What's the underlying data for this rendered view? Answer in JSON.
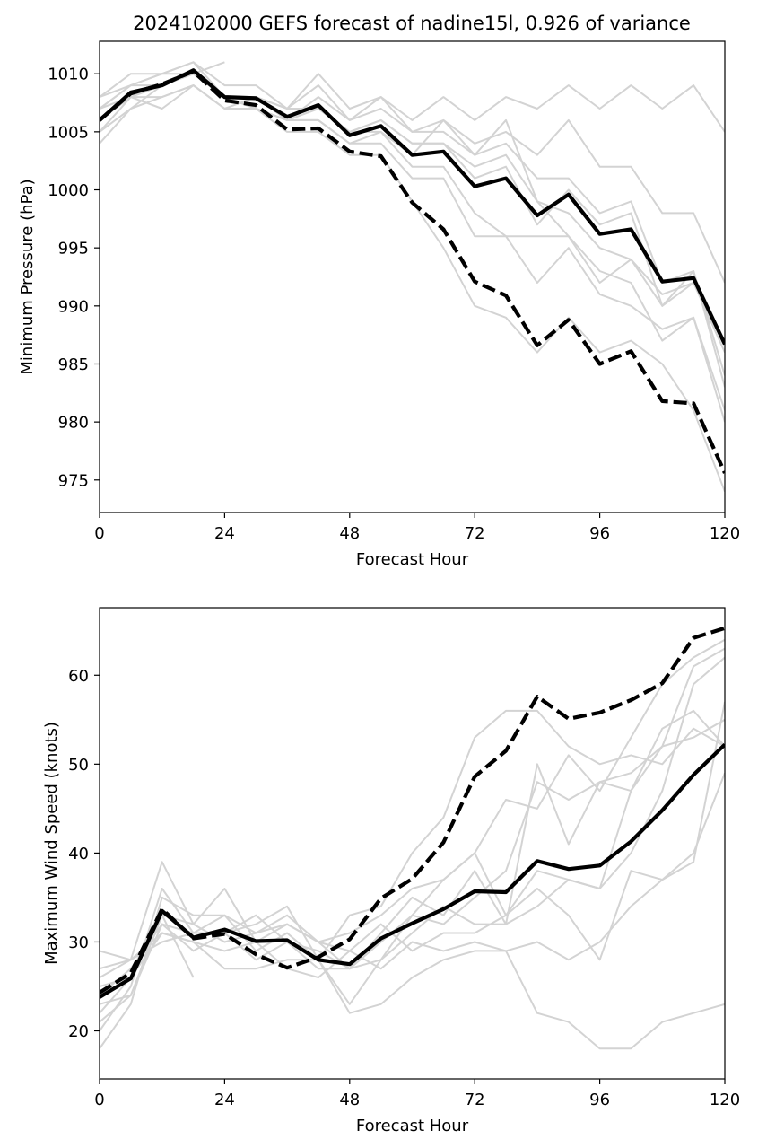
{
  "title": "2024102000 GEFS forecast of nadine15l, 0.926 of variance",
  "colors": {
    "members": "#d3d3d3",
    "primary": "#000000",
    "frame": "#000000"
  },
  "chart_data": [
    {
      "type": "line",
      "xlabel": "Forecast Hour",
      "ylabel": "Minimum Pressure (hPa)",
      "xlim": [
        0,
        120
      ],
      "ylim": [
        972.2,
        1012.8
      ],
      "xticks": [
        0,
        24,
        48,
        72,
        96,
        120
      ],
      "yticks": [
        975,
        980,
        985,
        990,
        995,
        1000,
        1005,
        1010
      ],
      "grid": false,
      "legend": "none",
      "x": [
        0,
        6,
        12,
        18,
        24,
        30,
        36,
        42,
        48,
        54,
        60,
        66,
        72,
        78,
        84,
        90,
        96,
        102,
        108,
        114,
        120
      ],
      "members": [
        [
          1008,
          1010,
          1010,
          1011,
          1008,
          1008,
          1007,
          1010,
          1007,
          1008,
          1006,
          1008,
          1006,
          1008,
          1007,
          1009,
          1007,
          1009,
          1007,
          1009,
          1005
        ],
        [
          1007,
          1009,
          1010,
          1011,
          1009,
          1009,
          1007,
          1009,
          1006,
          1008,
          1005,
          1006,
          1004,
          1005,
          1003,
          1006,
          1002,
          1002,
          998,
          998,
          992
        ],
        [
          1006,
          1008,
          1009,
          1010,
          1008,
          1008,
          1006,
          1008,
          1006,
          1007,
          1005,
          1005,
          1003,
          1004,
          1001,
          1001,
          998,
          999,
          992,
          993,
          983
        ],
        [
          1005,
          1008,
          1009,
          1010,
          1008,
          1007,
          1006,
          1007,
          1005,
          1006,
          1004,
          1004,
          1002,
          1003,
          999,
          998,
          995,
          994,
          990,
          993,
          984
        ],
        [
          1004,
          1007,
          1009,
          1010,
          1008,
          1007,
          1006,
          1007,
          1005,
          1005,
          1003,
          1006,
          1003,
          1006,
          999,
          996,
          993,
          992,
          987,
          989,
          981
        ],
        [
          1007,
          1008,
          1008,
          1009,
          1007,
          1008,
          1006,
          1006,
          1004,
          1005,
          1002,
          1002,
          998,
          996,
          992,
          995,
          991,
          990,
          988,
          989,
          980
        ],
        [
          1005,
          1007,
          1008,
          1009,
          1007,
          1007,
          1006,
          1006,
          1004,
          1004,
          1001,
          1001,
          996,
          996,
          996,
          996,
          992,
          994,
          991,
          992,
          986
        ],
        [
          1006,
          1008,
          1007,
          1009,
          1007,
          1007,
          1005,
          1005,
          1003,
          1003,
          999,
          995,
          990,
          989,
          986,
          989,
          986,
          987,
          985,
          981,
          974
        ],
        [
          1007,
          1009,
          1010,
          1010,
          1011,
          null,
          null,
          null,
          null,
          null,
          null,
          null,
          null,
          null,
          null,
          null,
          null,
          null,
          null,
          null,
          null
        ],
        [
          1008,
          1009,
          1009,
          1010,
          1008,
          1008,
          1007,
          1007,
          1005,
          1006,
          1004,
          1004,
          1001,
          1002,
          997,
          1000,
          997,
          998,
          990,
          992,
          987
        ]
      ],
      "series": [
        {
          "style": "solid",
          "values": [
            1006,
            1008.4,
            1009,
            1010.3,
            1008,
            1007.9,
            1006.3,
            1007.3,
            1004.7,
            1005.5,
            1003,
            1003.3,
            1000.3,
            1001,
            997.8,
            999.6,
            996.2,
            996.6,
            992.1,
            992.4,
            986.7
          ]
        },
        {
          "style": "dashed",
          "values": [
            1006,
            1008.3,
            1009.1,
            1010.2,
            1007.7,
            1007.3,
            1005.2,
            1005.3,
            1003.3,
            1002.9,
            998.9,
            996.6,
            992.1,
            990.9,
            986.6,
            988.8,
            985,
            986.1,
            981.8,
            981.6,
            975.6
          ]
        }
      ]
    },
    {
      "type": "line",
      "xlabel": "Forecast Hour",
      "ylabel": "Maximum Wind Speed (knots)",
      "xlim": [
        0,
        120
      ],
      "ylim": [
        14.6,
        67.6
      ],
      "xticks": [
        0,
        24,
        48,
        72,
        96,
        120
      ],
      "yticks": [
        20,
        30,
        40,
        50,
        60
      ],
      "grid": false,
      "legend": "none",
      "x": [
        0,
        6,
        12,
        18,
        24,
        30,
        36,
        42,
        48,
        54,
        60,
        66,
        72,
        78,
        84,
        90,
        96,
        102,
        108,
        114,
        120
      ],
      "members": [
        [
          29,
          28,
          39,
          32,
          36,
          30,
          27,
          26,
          29,
          27,
          30,
          29,
          30,
          29,
          22,
          21,
          18,
          18,
          21,
          22,
          23
        ],
        [
          18,
          23,
          35,
          33,
          33,
          29,
          31,
          28,
          22,
          23,
          26,
          28,
          29,
          29,
          30,
          28,
          30,
          34,
          37,
          40,
          49
        ],
        [
          20,
          25,
          36,
          31,
          31,
          28,
          30,
          29,
          27,
          28,
          31,
          34,
          32,
          32,
          34,
          37,
          36,
          47,
          54,
          56,
          52
        ],
        [
          22,
          26,
          31,
          30,
          27,
          27,
          28,
          28,
          23,
          28,
          33,
          37,
          40,
          46,
          45,
          51,
          47,
          53,
          59,
          62,
          64
        ],
        [
          24,
          27,
          32,
          31,
          33,
          31,
          32,
          30,
          27,
          31,
          35,
          33,
          38,
          32,
          50,
          41,
          48,
          49,
          52,
          61,
          63
        ],
        [
          25,
          26,
          33,
          32,
          30,
          31,
          33,
          30,
          31,
          33,
          36,
          37,
          40,
          33,
          38,
          37,
          36,
          40,
          47,
          59,
          62
        ],
        [
          26,
          28,
          31,
          30,
          29,
          30,
          32,
          30,
          29,
          32,
          29,
          31,
          31,
          33,
          36,
          33,
          28,
          38,
          37,
          39,
          57
        ],
        [
          27,
          28,
          30,
          31,
          31,
          32,
          34,
          28,
          33,
          34,
          40,
          44,
          53,
          56,
          56,
          52,
          50,
          51,
          50,
          54,
          52
        ],
        [
          21,
          24,
          32,
          29,
          31,
          33,
          30,
          27,
          27,
          30,
          33,
          32,
          35,
          38,
          48,
          46,
          48,
          47,
          52,
          53,
          55
        ],
        [
          23,
          24,
          33,
          26,
          null,
          null,
          null,
          null,
          null,
          null,
          null,
          null,
          null,
          null,
          null,
          null,
          null,
          null,
          null,
          null,
          null
        ]
      ],
      "series": [
        {
          "style": "solid",
          "values": [
            23.8,
            25.9,
            33.5,
            30.5,
            31.4,
            30.1,
            30.2,
            28,
            27.5,
            30.4,
            32.1,
            33.7,
            35.7,
            35.6,
            39.1,
            38.2,
            38.6,
            41.3,
            44.8,
            48.8,
            52.2
          ]
        },
        {
          "style": "dashed",
          "values": [
            24.3,
            26.5,
            33.7,
            30.4,
            30.9,
            28.6,
            27.1,
            28.3,
            30.3,
            34.9,
            37.1,
            41.2,
            48.6,
            51.5,
            57.6,
            55.1,
            55.8,
            57.2,
            59.1,
            64.2,
            65.3
          ]
        }
      ]
    }
  ]
}
